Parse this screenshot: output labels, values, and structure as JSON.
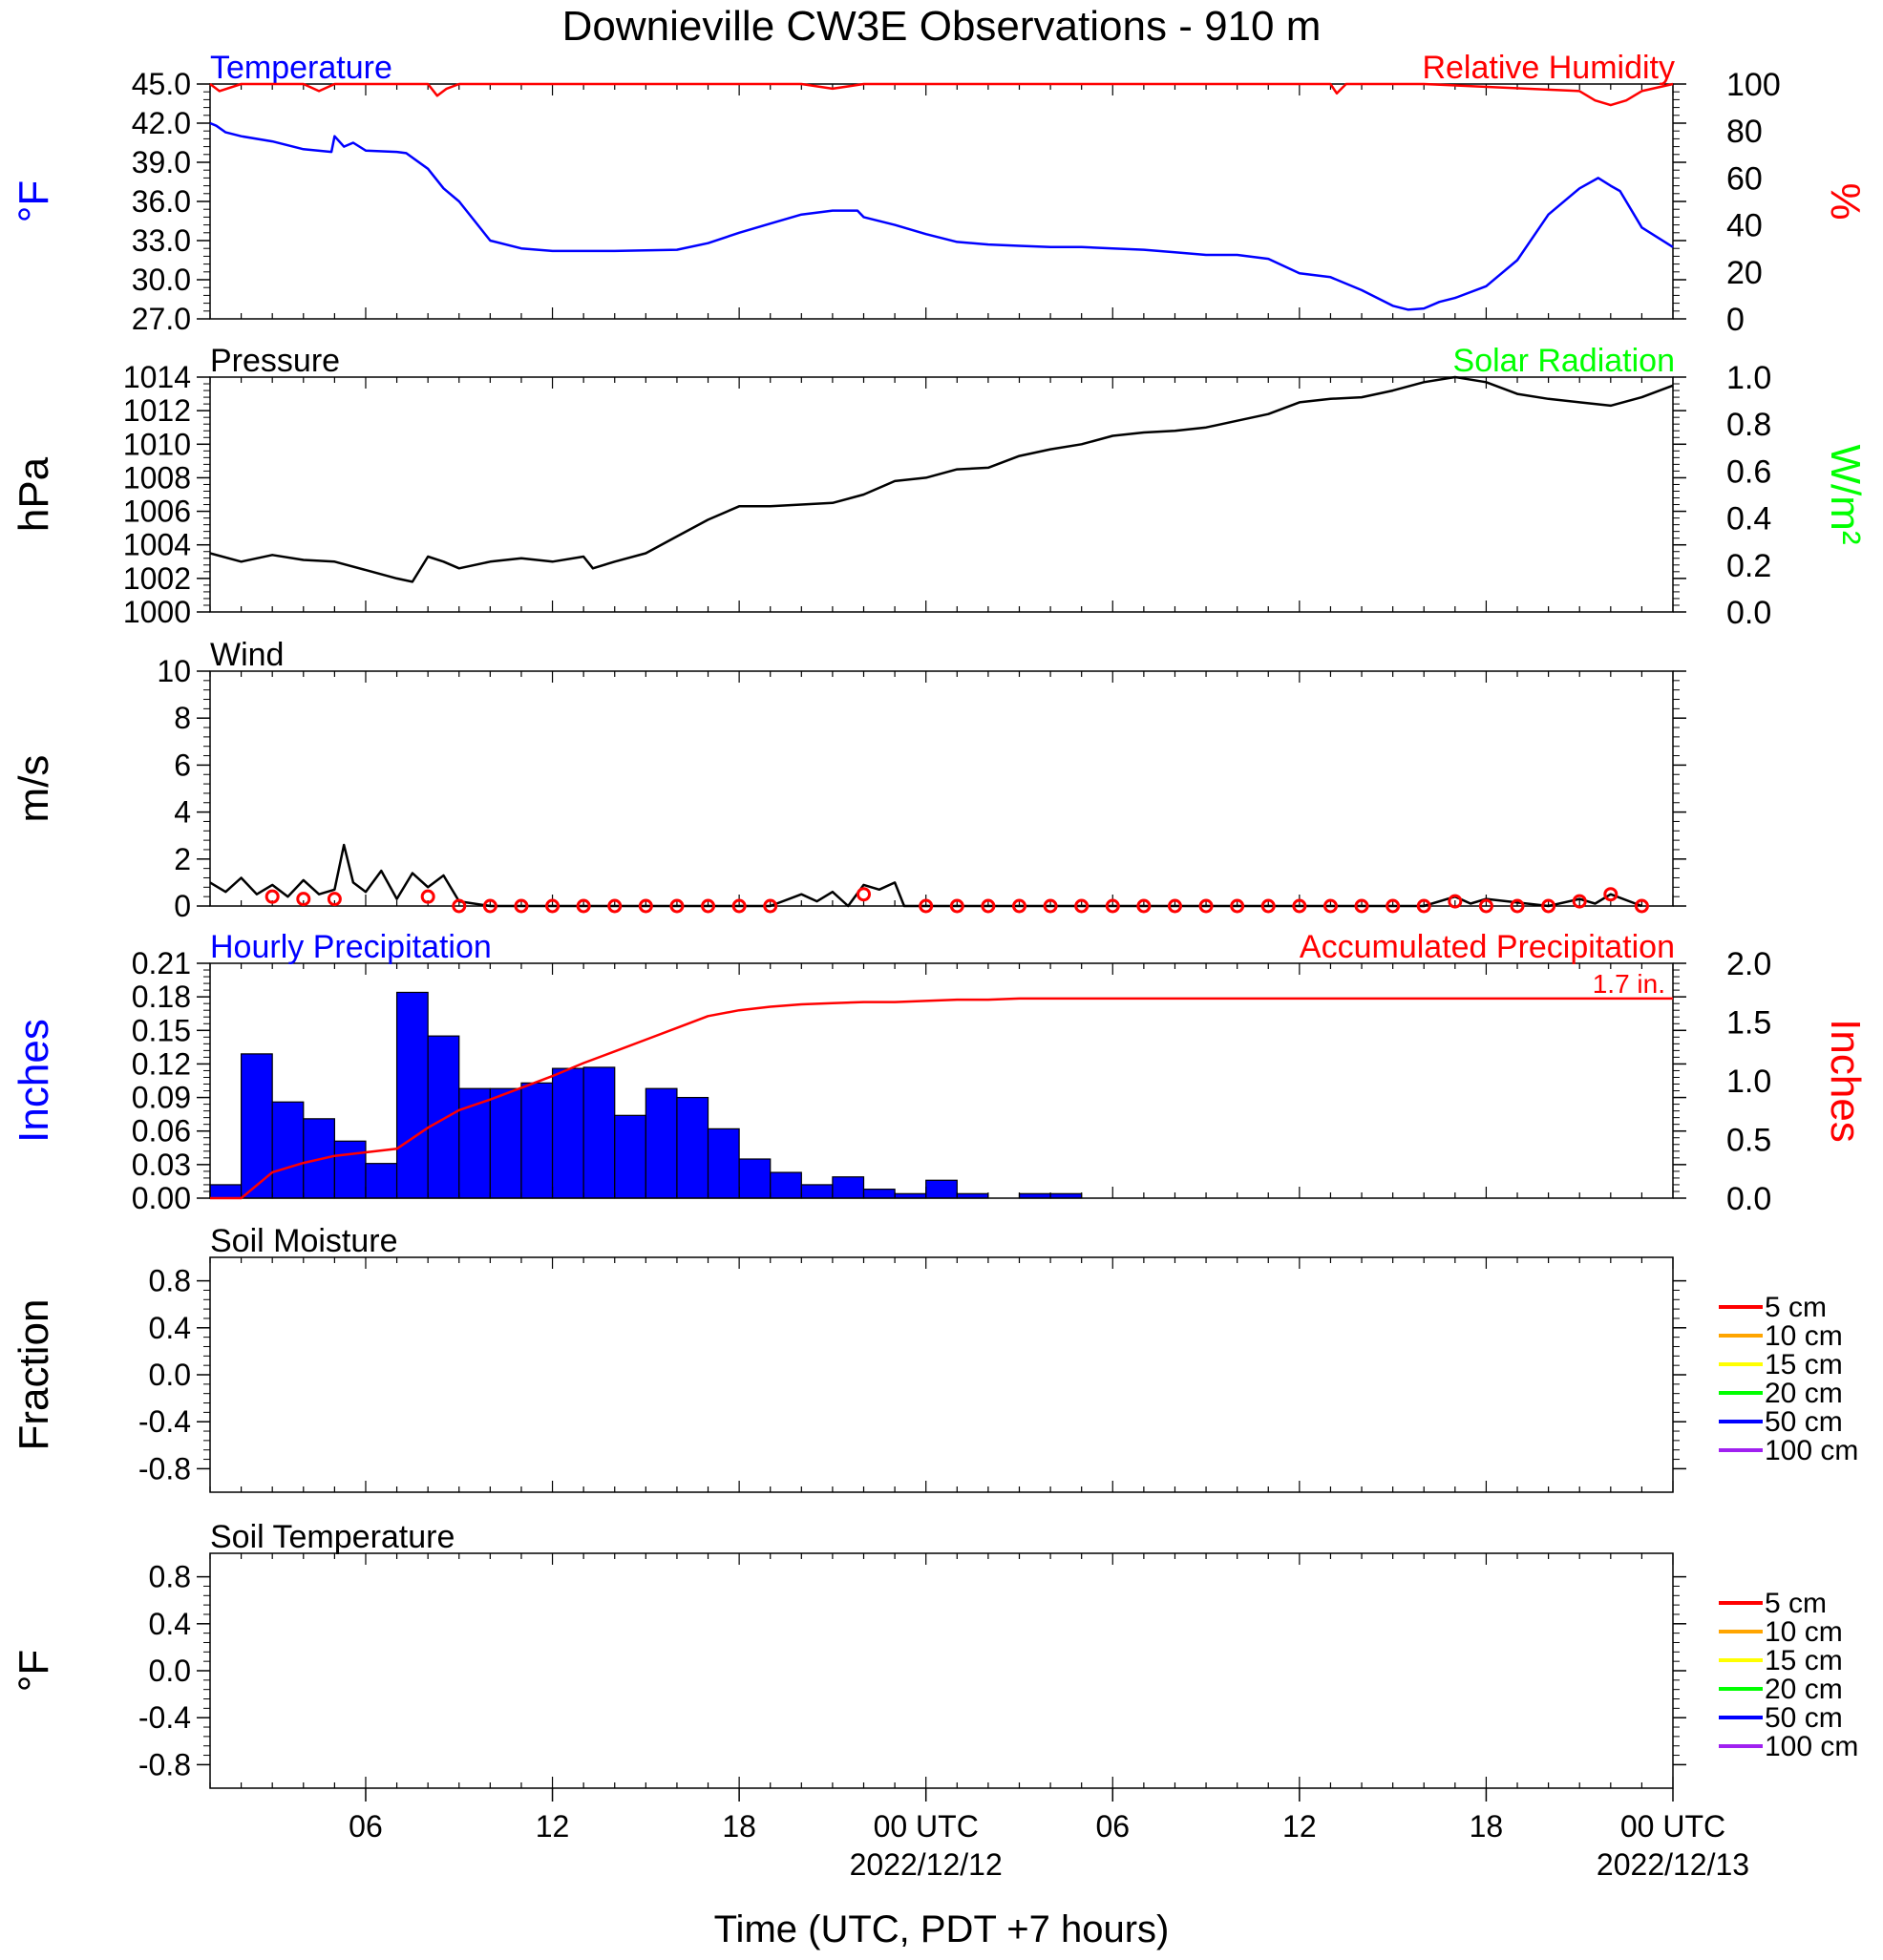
{
  "title": "Downieville CW3E Observations - 910 m",
  "xaxis": {
    "label": "Time (UTC, PDT +7 hours)",
    "ticks": [
      {
        "hours": 6,
        "label": "06",
        "date": ""
      },
      {
        "hours": 12,
        "label": "12",
        "date": ""
      },
      {
        "hours": 18,
        "label": "18",
        "date": ""
      },
      {
        "hours": 24,
        "label": "00 UTC",
        "date": "2022/12/12"
      },
      {
        "hours": 30,
        "label": "06",
        "date": ""
      },
      {
        "hours": 36,
        "label": "12",
        "date": ""
      },
      {
        "hours": 42,
        "label": "18",
        "date": ""
      },
      {
        "hours": 48,
        "label": "00 UTC",
        "date": "2022/12/13"
      }
    ],
    "range_hours": [
      1,
      48
    ]
  },
  "colors": {
    "temperature": "#0000ff",
    "humidity": "#ff0000",
    "pressure": "#000000",
    "solar": "#00ff00",
    "wind": "#000000",
    "wind_marker": "#ff0000",
    "precip_bar": "#0000ff",
    "precip_accum": "#ff0000"
  },
  "legend": [
    {
      "label": "5 cm",
      "color": "#ff0000"
    },
    {
      "label": "10 cm",
      "color": "#ffa500"
    },
    {
      "label": "15 cm",
      "color": "#ffff00"
    },
    {
      "label": "20 cm",
      "color": "#00ff00"
    },
    {
      "label": "50 cm",
      "color": "#0000ff"
    },
    {
      "label": "100 cm",
      "color": "#a020f0"
    }
  ],
  "chart_data": [
    {
      "id": "temp",
      "type": "line",
      "title_left": "Temperature",
      "title_right": "Relative Humidity",
      "ylabel_left": "°F",
      "ylabel_right": "%",
      "yleft": {
        "range": [
          27,
          45
        ],
        "ticks": [
          "45.0",
          "42.0",
          "39.0",
          "36.0",
          "33.0",
          "30.0",
          "27.0"
        ]
      },
      "yright": {
        "range": [
          0,
          100
        ],
        "ticks": [
          "100",
          "80",
          "60",
          "40",
          "20",
          "0"
        ]
      },
      "series": [
        {
          "axis": "left",
          "color_key": "temperature",
          "x": [
            1,
            1.2,
            1.5,
            2,
            3,
            4,
            4.9,
            5,
            5.3,
            5.6,
            6,
            7,
            7.3,
            8,
            8.5,
            9,
            9.5,
            10,
            11,
            12,
            13,
            14,
            16,
            17,
            18,
            19,
            20,
            21,
            21.8,
            22,
            23,
            24,
            25,
            26,
            27,
            28,
            29,
            30,
            31,
            32,
            33,
            34,
            35,
            36,
            37,
            38,
            39,
            39.5,
            40,
            40.5,
            41,
            42,
            43,
            44,
            45,
            45.6,
            46,
            46.3,
            47,
            48
          ],
          "y": [
            42.0,
            41.8,
            41.3,
            41.0,
            40.6,
            40.0,
            39.8,
            41.0,
            40.2,
            40.5,
            39.9,
            39.8,
            39.7,
            38.5,
            37.0,
            36.0,
            34.5,
            33.0,
            32.4,
            32.2,
            32.2,
            32.2,
            32.3,
            32.8,
            33.6,
            34.3,
            35.0,
            35.3,
            35.3,
            34.8,
            34.2,
            33.5,
            32.9,
            32.7,
            32.6,
            32.5,
            32.5,
            32.4,
            32.3,
            32.1,
            31.9,
            31.9,
            31.6,
            30.5,
            30.2,
            29.2,
            28.0,
            27.7,
            27.8,
            28.3,
            28.6,
            29.5,
            31.5,
            35.0,
            37.0,
            37.8,
            37.2,
            36.8,
            34.0,
            32.5
          ]
        },
        {
          "axis": "right",
          "color_key": "humidity",
          "x": [
            1,
            1.3,
            2,
            4,
            4.5,
            5,
            8,
            8.3,
            8.6,
            9,
            20,
            21,
            22,
            23,
            37,
            37.2,
            37.5,
            38,
            40,
            45,
            45.5,
            46,
            46.5,
            47,
            48
          ],
          "y": [
            100,
            97,
            100,
            100,
            97,
            100,
            100,
            95,
            98,
            100,
            100,
            98,
            100,
            100,
            100,
            96,
            100,
            100,
            100,
            97,
            93,
            91,
            93,
            97,
            100
          ]
        }
      ]
    },
    {
      "id": "pressure",
      "type": "line",
      "title_left": "Pressure",
      "title_right": "Solar Radiation",
      "ylabel_left": "hPa",
      "ylabel_right": "W/m²",
      "yleft": {
        "range": [
          1000,
          1014
        ],
        "ticks": [
          "1014",
          "1012",
          "1010",
          "1008",
          "1006",
          "1004",
          "1002",
          "1000"
        ]
      },
      "yright": {
        "range": [
          0,
          1
        ],
        "ticks": [
          "1.0",
          "0.8",
          "0.6",
          "0.4",
          "0.2",
          "0.0"
        ]
      },
      "series": [
        {
          "axis": "left",
          "color_key": "pressure",
          "x": [
            1,
            2,
            3,
            4,
            5,
            6,
            7,
            7.5,
            8,
            8.5,
            9,
            10,
            11,
            12,
            13,
            13.3,
            14,
            15,
            16,
            17,
            18,
            19,
            20,
            21,
            22,
            23,
            24,
            25,
            26,
            27,
            28,
            29,
            30,
            31,
            32,
            33,
            34,
            35,
            36,
            37,
            38,
            39,
            40,
            41,
            42,
            43,
            44,
            45,
            46,
            47,
            48
          ],
          "y": [
            1003.5,
            1003.0,
            1003.4,
            1003.1,
            1003.0,
            1002.5,
            1002.0,
            1001.8,
            1003.3,
            1003.0,
            1002.6,
            1003.0,
            1003.2,
            1003.0,
            1003.3,
            1002.6,
            1003.0,
            1003.5,
            1004.5,
            1005.5,
            1006.3,
            1006.3,
            1006.4,
            1006.5,
            1007.0,
            1007.8,
            1008.0,
            1008.5,
            1008.6,
            1009.3,
            1009.7,
            1010.0,
            1010.5,
            1010.7,
            1010.8,
            1011.0,
            1011.4,
            1011.8,
            1012.5,
            1012.7,
            1012.8,
            1013.2,
            1013.7,
            1014.0,
            1013.7,
            1013.0,
            1012.7,
            1012.5,
            1012.3,
            1012.8,
            1013.5
          ]
        }
      ]
    },
    {
      "id": "wind",
      "type": "line",
      "title_left": "Wind",
      "title_right": "",
      "ylabel_left": "m/s",
      "ylabel_right": "",
      "yleft": {
        "range": [
          0,
          10
        ],
        "ticks": [
          "10",
          "8",
          "6",
          "4",
          "2",
          "0"
        ]
      },
      "series": [
        {
          "axis": "left",
          "color_key": "wind",
          "x": [
            1,
            1.5,
            2,
            2.5,
            3,
            3.5,
            4,
            4.5,
            5,
            5.3,
            5.6,
            6,
            6.5,
            7,
            7.5,
            8,
            8.5,
            9,
            10,
            19,
            20,
            20.5,
            21,
            21.5,
            22,
            22.5,
            23,
            23.3,
            40,
            41,
            41.5,
            42,
            44,
            45,
            45.5,
            46,
            47
          ],
          "y": [
            1.0,
            0.6,
            1.2,
            0.5,
            0.9,
            0.4,
            1.1,
            0.5,
            0.7,
            2.6,
            1.0,
            0.6,
            1.5,
            0.3,
            1.4,
            0.8,
            1.3,
            0.2,
            0,
            0,
            0.5,
            0.2,
            0.6,
            0,
            0.9,
            0.7,
            1.0,
            0,
            0,
            0.4,
            0.1,
            0.3,
            0,
            0.3,
            0.1,
            0.5,
            0
          ]
        },
        {
          "axis": "left",
          "color_key": "wind_marker",
          "markers": true,
          "x": [
            3,
            4,
            5,
            8,
            9,
            10,
            11,
            12,
            13,
            14,
            15,
            16,
            17,
            18,
            19,
            22,
            24,
            25,
            26,
            27,
            28,
            29,
            30,
            31,
            32,
            33,
            34,
            35,
            36,
            37,
            38,
            39,
            40,
            41,
            42,
            43,
            44,
            45,
            46,
            47
          ],
          "y": [
            0.4,
            0.3,
            0.3,
            0.4,
            0,
            0,
            0,
            0,
            0,
            0,
            0,
            0,
            0,
            0,
            0,
            0.5,
            0,
            0,
            0,
            0,
            0,
            0,
            0,
            0,
            0,
            0,
            0,
            0,
            0,
            0,
            0,
            0,
            0,
            0.2,
            0,
            0,
            0,
            0.2,
            0.5,
            0
          ]
        }
      ]
    },
    {
      "id": "precip",
      "type": "bar",
      "title_left": "Hourly Precipitation",
      "title_right": "Accumulated Precipitation",
      "ylabel_left": "Inches",
      "ylabel_right": "Inches",
      "annotation": "1.7 in.",
      "yleft": {
        "range": [
          0,
          0.21
        ],
        "ticks": [
          "0.21",
          "0.18",
          "0.15",
          "0.12",
          "0.09",
          "0.06",
          "0.03",
          "0.00"
        ]
      },
      "yright": {
        "range": [
          0,
          2
        ],
        "ticks": [
          "2.0",
          "1.5",
          "1.0",
          "0.5",
          "0.0"
        ]
      },
      "bars": {
        "x": [
          1,
          2,
          3,
          4,
          5,
          6,
          7,
          8,
          9,
          10,
          11,
          12,
          13,
          14,
          15,
          16,
          17,
          18,
          19,
          20,
          21,
          22,
          23,
          24,
          25,
          26,
          27,
          28,
          29
        ],
        "values": [
          0.012,
          0.129,
          0.086,
          0.071,
          0.051,
          0.031,
          0.184,
          0.145,
          0.098,
          0.098,
          0.103,
          0.116,
          0.117,
          0.074,
          0.098,
          0.09,
          0.062,
          0.035,
          0.023,
          0.012,
          0.019,
          0.008,
          0.004,
          0.016,
          0.004,
          0,
          0.004,
          0.004,
          0
        ]
      },
      "series": [
        {
          "axis": "right",
          "color_key": "precip_accum",
          "x": [
            1,
            2,
            3,
            4,
            5,
            6,
            7,
            8,
            9,
            10,
            11,
            12,
            13,
            14,
            15,
            16,
            17,
            18,
            19,
            20,
            21,
            22,
            23,
            24,
            25,
            26,
            27,
            28,
            29,
            48
          ],
          "y": [
            0,
            0,
            0.22,
            0.3,
            0.36,
            0.39,
            0.42,
            0.6,
            0.75,
            0.84,
            0.94,
            1.04,
            1.15,
            1.25,
            1.35,
            1.45,
            1.55,
            1.6,
            1.63,
            1.65,
            1.66,
            1.67,
            1.67,
            1.68,
            1.69,
            1.69,
            1.7,
            1.7,
            1.7,
            1.7
          ]
        }
      ]
    },
    {
      "id": "soilm",
      "type": "line",
      "title_left": "Soil Moisture",
      "title_right": "",
      "ylabel_left": "Fraction",
      "ylabel_right": "",
      "legend": true,
      "yleft": {
        "range": [
          -1,
          1
        ],
        "ticks": [
          "0.8",
          "0.4",
          "0.0",
          "-0.4",
          "-0.8"
        ]
      },
      "series": []
    },
    {
      "id": "soilt",
      "type": "line",
      "title_left": "Soil Temperature",
      "title_right": "",
      "ylabel_left": "°F",
      "ylabel_right": "",
      "legend": true,
      "yleft": {
        "range": [
          -1,
          1
        ],
        "ticks": [
          "0.8",
          "0.4",
          "0.0",
          "-0.4",
          "-0.8"
        ]
      },
      "series": []
    }
  ]
}
